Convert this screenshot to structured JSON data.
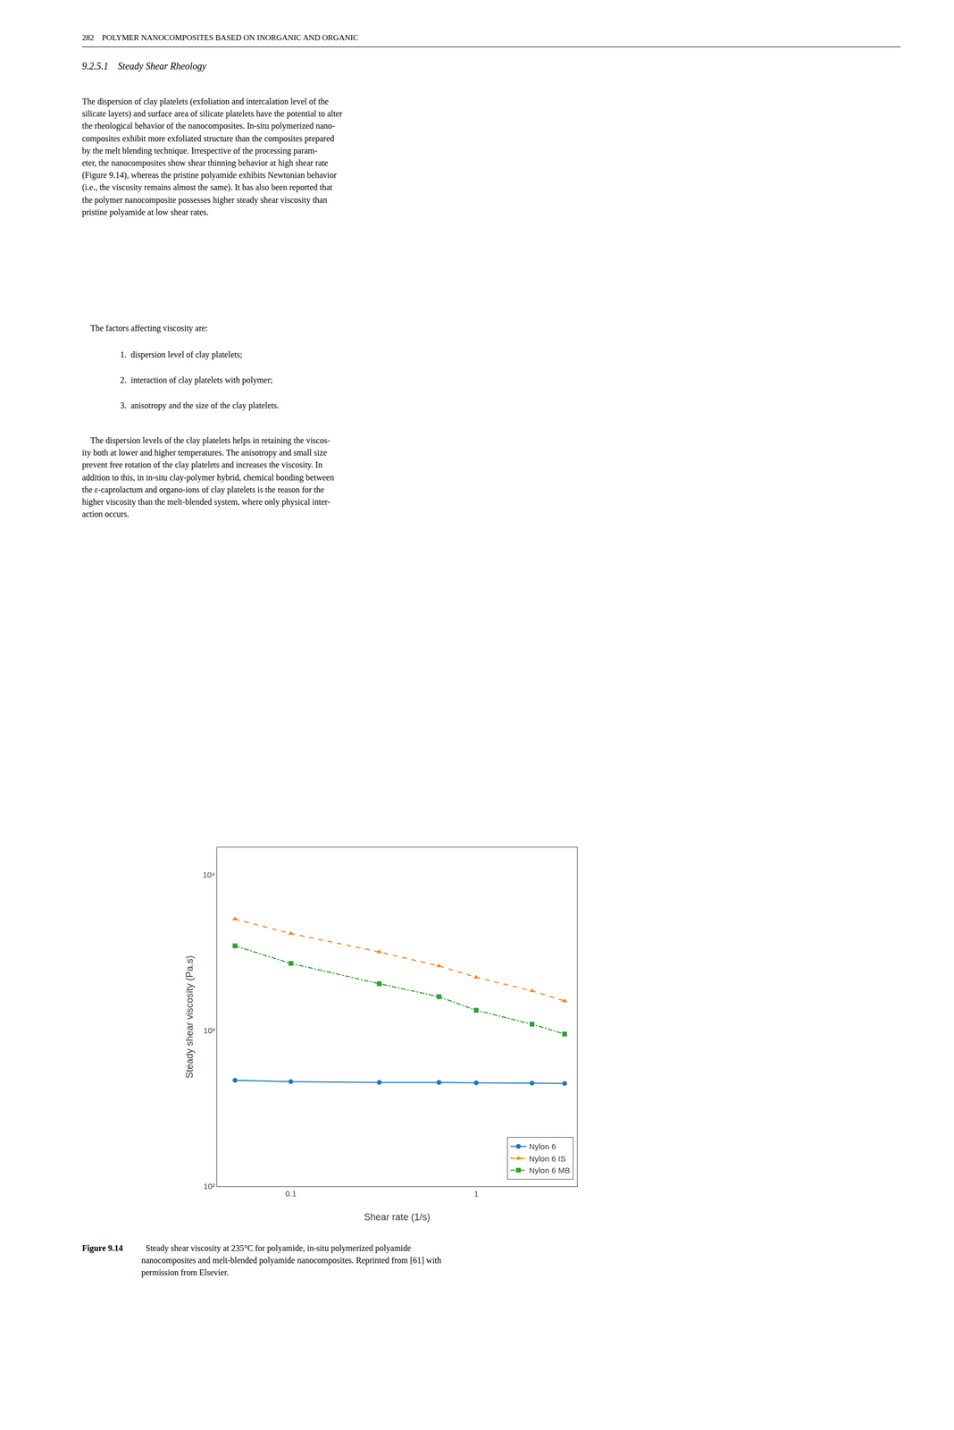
{
  "chart_data": {
    "type": "line",
    "x_label": "Shear rate (1/s)",
    "y_label": "Steady shear viscosity (Pa.s)",
    "log": true,
    "grid": false,
    "legend": "lower right",
    "xlim": [
      0.04,
      3.5
    ],
    "ylim": [
      100,
      15000
    ],
    "xticks": [
      0.1,
      1
    ],
    "yticks": [
      {
        "value": 100,
        "label": "10²"
      },
      {
        "value": 1000,
        "label": "10³"
      },
      {
        "value": 10000,
        "label": "10⁴"
      }
    ],
    "x": [
      0.05,
      0.1,
      0.3,
      0.63,
      1.0,
      2.0,
      3.0
    ],
    "series": [
      {
        "name": "Nylon 6",
        "values": [
          480,
          470,
          465,
          465,
          462,
          460,
          458
        ],
        "marker": "circle",
        "line_style": "solid"
      },
      {
        "name": "Nylon 6 IS",
        "values": [
          5200,
          4200,
          3200,
          2600,
          2200,
          1800,
          1550
        ],
        "marker": "triangle-up",
        "line_style": "dash"
      },
      {
        "name": "Nylon 6 MB",
        "values": [
          3500,
          2700,
          2000,
          1650,
          1350,
          1100,
          950
        ],
        "marker": "square",
        "line_style": "dashdot"
      }
    ],
    "annotations": [
      "282    POLYMER NANOCOMPOSITES BASED ON INORGANIC AND ORGANIC",
      "9.2.5.1    Steady Shear Rheology",
      "The dispersion of clay platelets (exfoliation and intercalation level of the\nsilicate layers) and surface area of silicate platelets have the potential to alter\nthe rheological behavior of the nanocomposites. In-situ polymerized nano-\ncomposites exhibit more exfoliated structure than the composites prepared\nby the melt blending technique. Irrespective of the processing param-\neter, the nanocomposites show shear thinning behavior at high shear rate\n(Figure 9.14), whereas the pristine polyamide exhibits Newtonian behavior\n(i.e., the viscosity remains almost the same). It has also been reported that\nthe polymer nanocomposite possesses higher steady shear viscosity than\npristine polyamide at low shear rates.",
      "    The factors affecting viscosity are:",
      "1.  dispersion level of clay platelets;",
      "2.  interaction of clay platelets with polymer;",
      "3.  anisotropy and the size of the clay platelets.",
      "    The dispersion levels of the clay platelets helps in retaining the viscos-\nity both at lower and higher temperatures. The anisotropy and small size\nprevent free rotation of the clay platelets and increases the viscosity. In\naddition to this, in in-situ clay-polymer hybrid, chemical bonding between\nthe ε-caprolactum and organo-ions of clay platelets is the reason for the\nhigher viscosity than the melt-blended system, where only physical inter-\naction occurs.",
      "Figure 9.14",
      "  Steady shear viscosity at 235°C for polyamide, in-situ polymerized polyamide\nnanocomposites and melt-blended polyamide nanocomposites. Reprinted from [61] with\npermission from Elsevier."
    ]
  }
}
